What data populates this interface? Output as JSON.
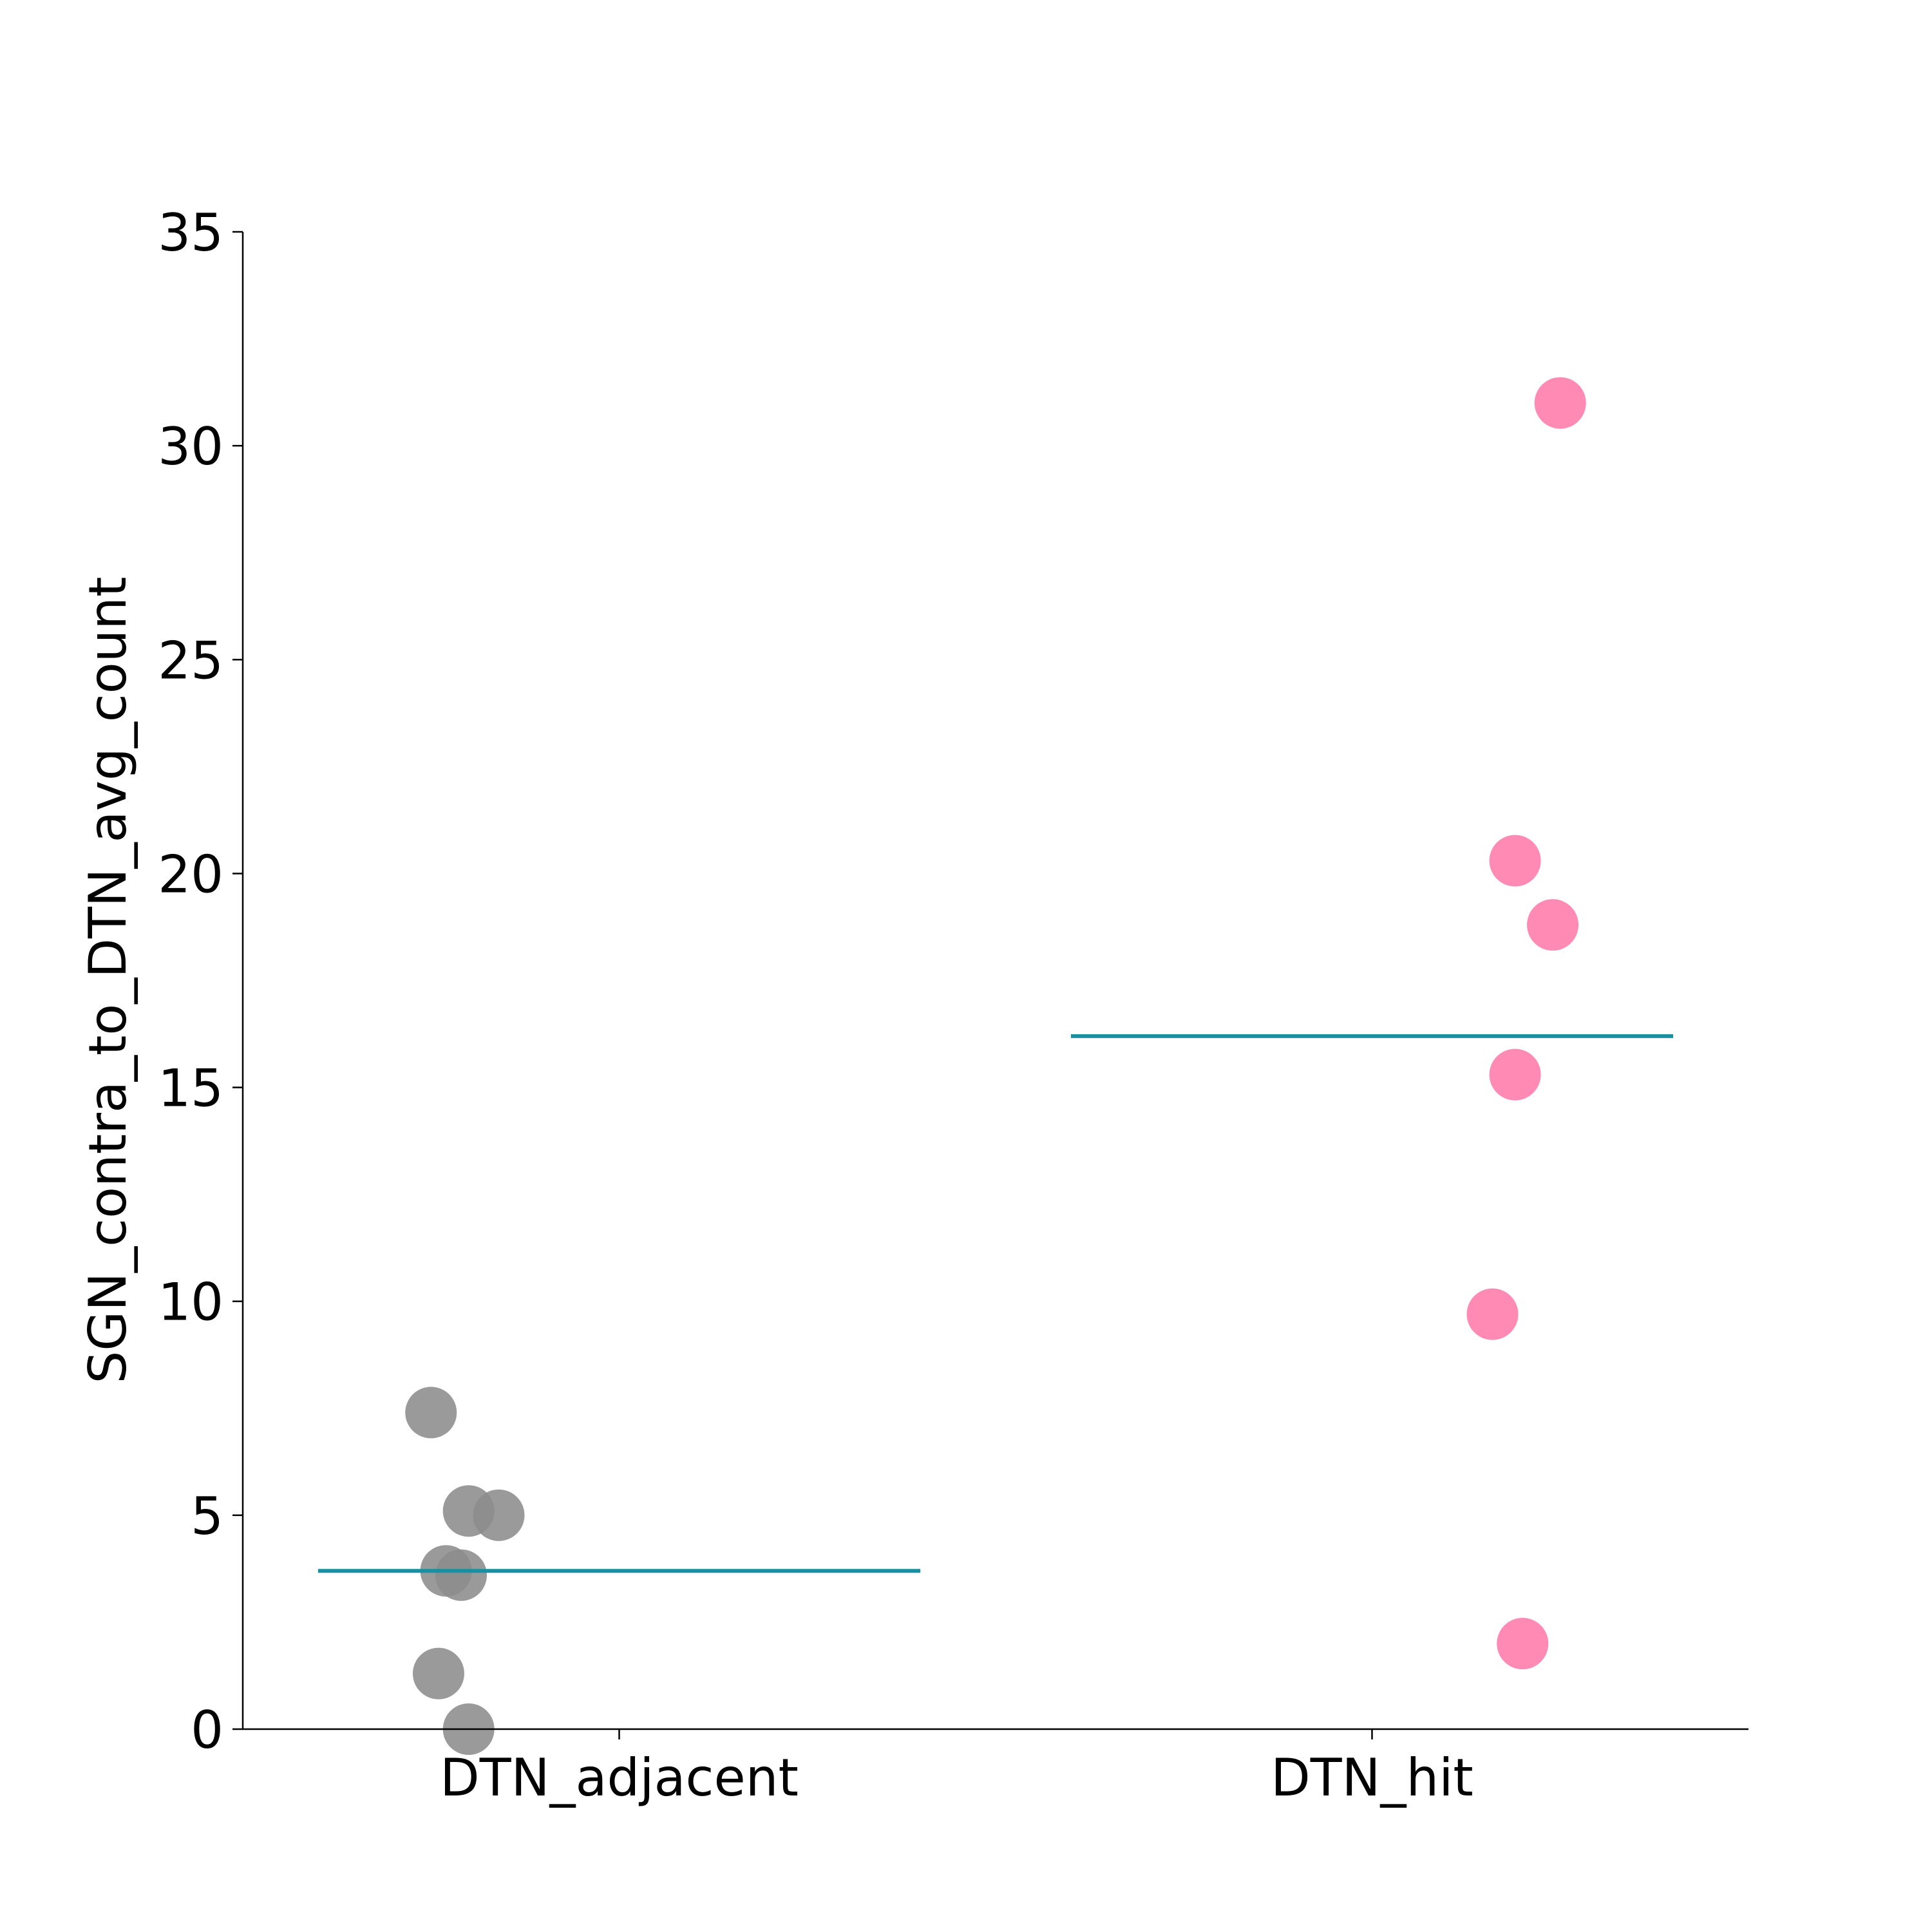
{
  "chart_data": {
    "type": "scatter",
    "title": "",
    "xlabel": "",
    "ylabel": "SGN_contra_to_DTN_avg_count",
    "categories": [
      "DTN_adjacent",
      "DTN_hit"
    ],
    "ylim": [
      0,
      35
    ],
    "yticks": [
      0,
      5,
      10,
      15,
      20,
      25,
      30,
      35
    ],
    "grid": false,
    "legend": "none",
    "series": [
      {
        "category": "DTN_adjacent",
        "color": "#8c8c8c",
        "values": [
          7.4,
          5.1,
          5.0,
          3.7,
          3.6,
          1.3,
          0.0
        ],
        "jitter": [
          -0.25,
          -0.2,
          -0.16,
          -0.23,
          -0.21,
          -0.24,
          -0.2
        ],
        "mean": 3.7
      },
      {
        "category": "DTN_hit",
        "color": "#ff7aa8",
        "values": [
          31.0,
          20.3,
          18.8,
          15.3,
          9.7,
          2.0
        ],
        "jitter": [
          0.25,
          0.19,
          0.24,
          0.19,
          0.16,
          0.2
        ],
        "mean": 16.2
      }
    ],
    "mean_line_color": "#1a8fa0"
  }
}
